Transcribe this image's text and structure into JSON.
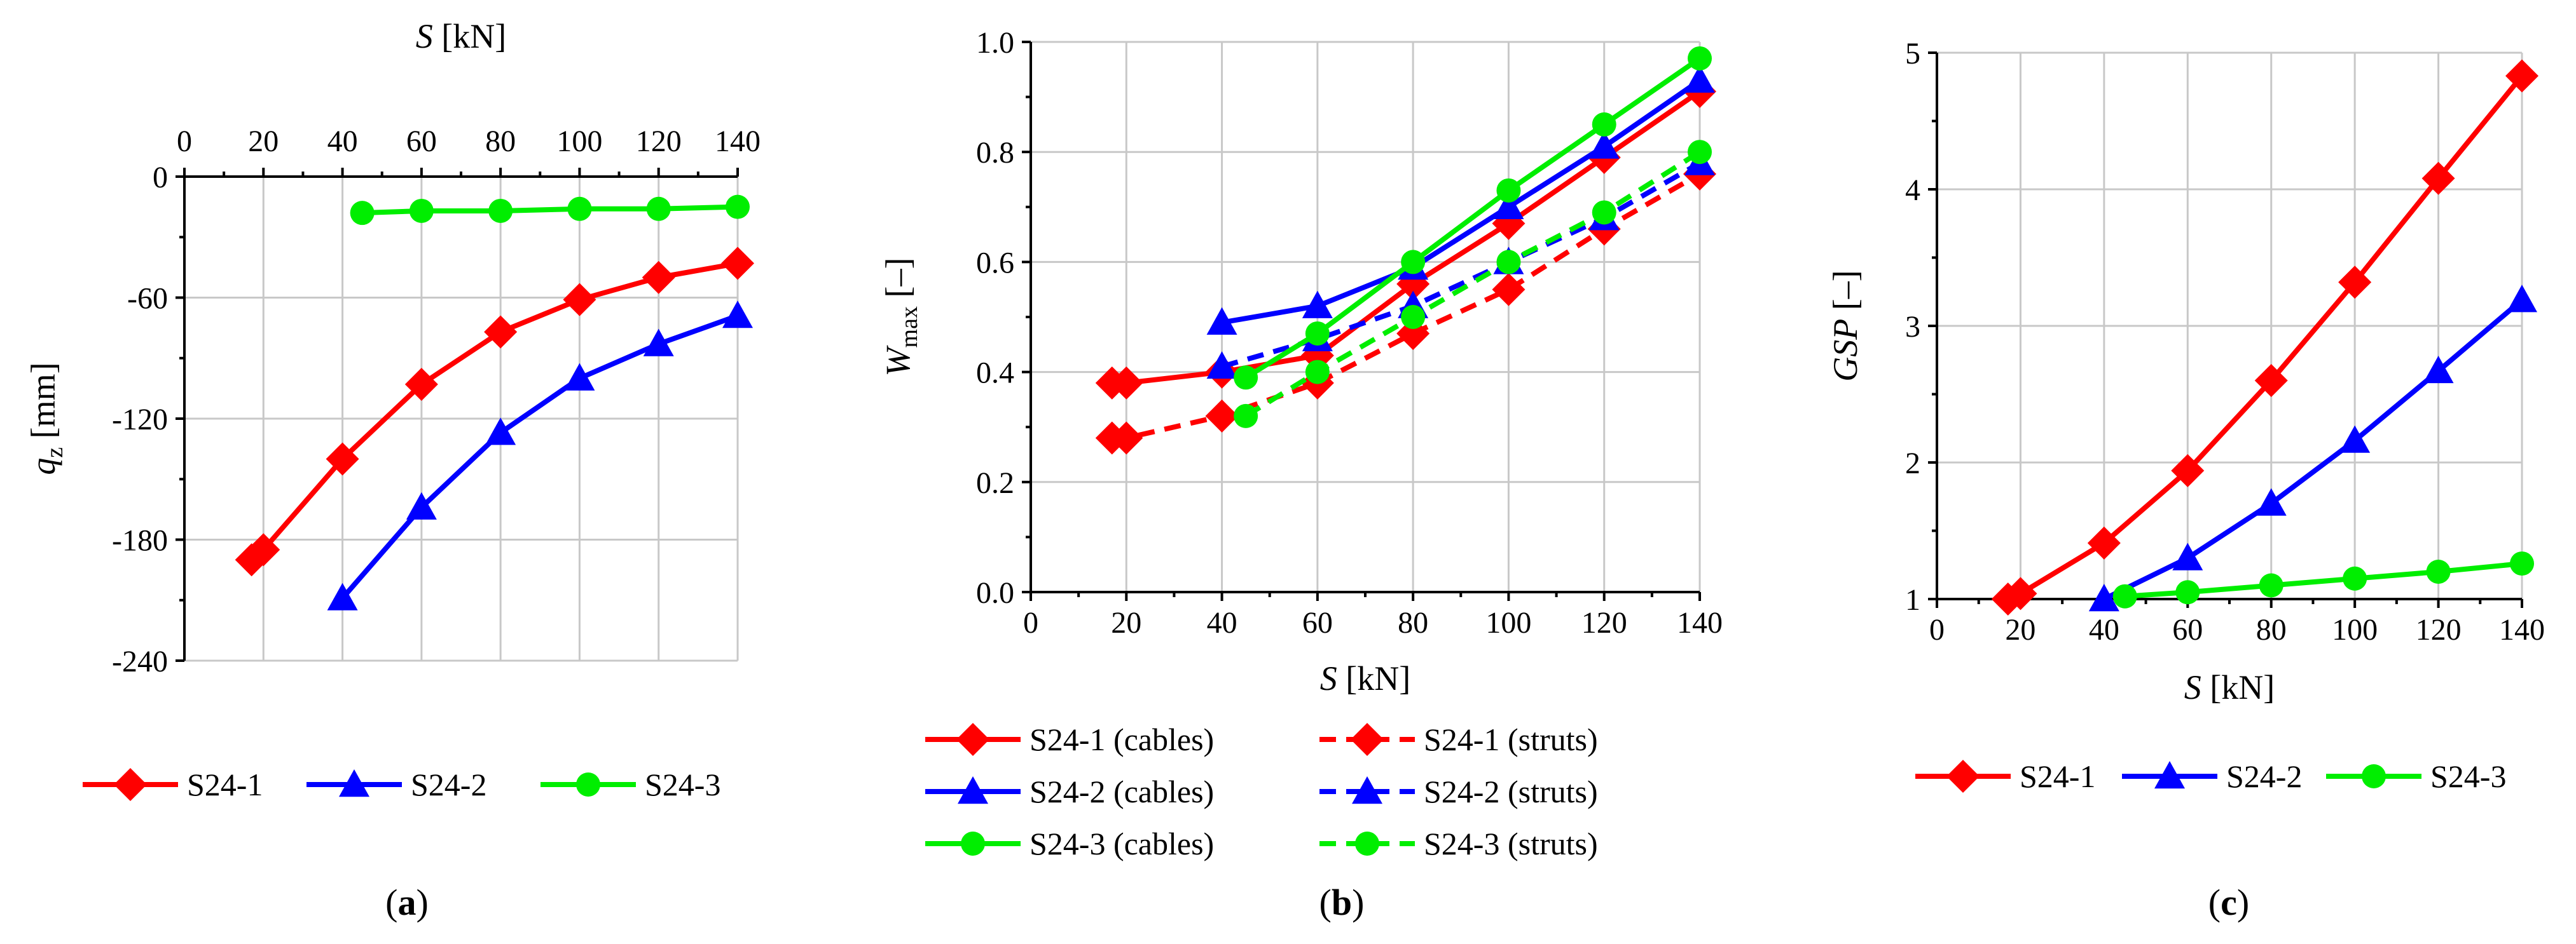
{
  "chart_data": [
    {
      "type": "line",
      "panel_label": "(a)",
      "xlabel_var": "S",
      "xlabel_unit": " [kN]",
      "ylabel_var": "q",
      "ylabel_sub": "z",
      "ylabel_unit": " [mm]",
      "x_axis_position": "top",
      "xlim": [
        0,
        140
      ],
      "ylim": [
        -240,
        0
      ],
      "x_ticks": [
        0,
        20,
        40,
        60,
        80,
        100,
        120,
        140
      ],
      "x_tick_labels": [
        "0",
        "20",
        "40",
        "60",
        "80",
        "100",
        "120",
        "140"
      ],
      "y_ticks": [
        0,
        -60,
        -120,
        -180,
        -240
      ],
      "y_tick_labels": [
        "0",
        "-60",
        "-120",
        "-180",
        "-240"
      ],
      "legend_position": "bottom",
      "series": [
        {
          "name": "S24-1",
          "color": "#ff0000",
          "marker": "diamond",
          "dash": false,
          "x": [
            17,
            20,
            40,
            60,
            80,
            100,
            120,
            140
          ],
          "y": [
            -190,
            -185,
            -140,
            -103,
            -77,
            -61,
            -50,
            -43
          ]
        },
        {
          "name": "S24-2",
          "color": "#0000ff",
          "marker": "triangle",
          "dash": false,
          "x": [
            40,
            60,
            80,
            100,
            120,
            140
          ],
          "y": [
            -209,
            -164,
            -127,
            -100,
            -83,
            -69
          ]
        },
        {
          "name": "S24-3",
          "color": "#00ee00",
          "marker": "circle",
          "dash": false,
          "x": [
            45,
            60,
            80,
            100,
            120,
            140
          ],
          "y": [
            -18,
            -17,
            -17,
            -16,
            -16,
            -15
          ]
        }
      ]
    },
    {
      "type": "line",
      "panel_label": "(b)",
      "xlabel_var": "S",
      "xlabel_unit": " [kN]",
      "ylabel_var": "W",
      "ylabel_sub": "max",
      "ylabel_unit": " [–]",
      "x_axis_position": "bottom",
      "xlim": [
        0,
        140
      ],
      "ylim": [
        0,
        1.0
      ],
      "x_ticks": [
        0,
        20,
        40,
        60,
        80,
        100,
        120,
        140
      ],
      "x_tick_labels": [
        "0",
        "20",
        "40",
        "60",
        "80",
        "100",
        "120",
        "140"
      ],
      "y_ticks": [
        0,
        0.2,
        0.4,
        0.6,
        0.8,
        1.0
      ],
      "y_tick_labels": [
        "0.0",
        "0.2",
        "0.4",
        "0.6",
        "0.8",
        "1.0"
      ],
      "legend_position": "bottom",
      "series": [
        {
          "name": "S24-1 (cables)",
          "color": "#ff0000",
          "marker": "diamond",
          "dash": false,
          "x": [
            17,
            20,
            40,
            60,
            80,
            100,
            120,
            140
          ],
          "y": [
            0.38,
            0.38,
            0.4,
            0.43,
            0.56,
            0.67,
            0.79,
            0.91
          ]
        },
        {
          "name": "S24-1 (struts)",
          "color": "#ff0000",
          "marker": "diamond",
          "dash": true,
          "x": [
            17,
            20,
            40,
            60,
            80,
            100,
            120,
            140
          ],
          "y": [
            0.28,
            0.28,
            0.32,
            0.38,
            0.47,
            0.55,
            0.66,
            0.76
          ]
        },
        {
          "name": "S24-2 (cables)",
          "color": "#0000ff",
          "marker": "triangle",
          "dash": false,
          "x": [
            40,
            60,
            80,
            100,
            120,
            140
          ],
          "y": [
            0.49,
            0.52,
            0.59,
            0.7,
            0.81,
            0.93
          ]
        },
        {
          "name": "S24-2 (struts)",
          "color": "#0000ff",
          "marker": "triangle",
          "dash": true,
          "x": [
            40,
            60,
            80,
            100,
            120,
            140
          ],
          "y": [
            0.41,
            0.46,
            0.52,
            0.6,
            0.68,
            0.78
          ]
        },
        {
          "name": "S24-3 (cables)",
          "color": "#00ee00",
          "marker": "circle",
          "dash": false,
          "x": [
            45,
            60,
            80,
            100,
            120,
            140
          ],
          "y": [
            0.39,
            0.47,
            0.6,
            0.73,
            0.85,
            0.97
          ]
        },
        {
          "name": "S24-3 (struts)",
          "color": "#00ee00",
          "marker": "circle",
          "dash": true,
          "x": [
            45,
            60,
            80,
            100,
            120,
            140
          ],
          "y": [
            0.32,
            0.4,
            0.5,
            0.6,
            0.69,
            0.8
          ]
        }
      ]
    },
    {
      "type": "line",
      "panel_label": "(c)",
      "xlabel_var": "S",
      "xlabel_unit": " [kN]",
      "ylabel_var": "GSP",
      "ylabel_sub": "",
      "ylabel_unit": " [–]",
      "x_axis_position": "bottom",
      "xlim": [
        0,
        140
      ],
      "ylim": [
        1,
        5
      ],
      "x_ticks": [
        0,
        20,
        40,
        60,
        80,
        100,
        120,
        140
      ],
      "x_tick_labels": [
        "0",
        "20",
        "40",
        "60",
        "80",
        "100",
        "120",
        "140"
      ],
      "y_ticks": [
        1,
        2,
        3,
        4,
        5
      ],
      "y_tick_labels": [
        "1",
        "2",
        "3",
        "4",
        "5"
      ],
      "legend_position": "bottom",
      "series": [
        {
          "name": "S24-1",
          "color": "#ff0000",
          "marker": "diamond",
          "dash": false,
          "x": [
            17,
            20,
            40,
            60,
            80,
            100,
            120,
            140
          ],
          "y": [
            1.0,
            1.04,
            1.41,
            1.94,
            2.6,
            3.32,
            4.08,
            4.83
          ]
        },
        {
          "name": "S24-2",
          "color": "#0000ff",
          "marker": "triangle",
          "dash": false,
          "x": [
            40,
            60,
            80,
            100,
            120,
            140
          ],
          "y": [
            1.0,
            1.3,
            1.7,
            2.16,
            2.67,
            3.19
          ]
        },
        {
          "name": "S24-3",
          "color": "#00ee00",
          "marker": "circle",
          "dash": false,
          "x": [
            45,
            60,
            80,
            100,
            120,
            140
          ],
          "y": [
            1.02,
            1.05,
            1.1,
            1.15,
            1.2,
            1.26
          ]
        }
      ]
    }
  ]
}
